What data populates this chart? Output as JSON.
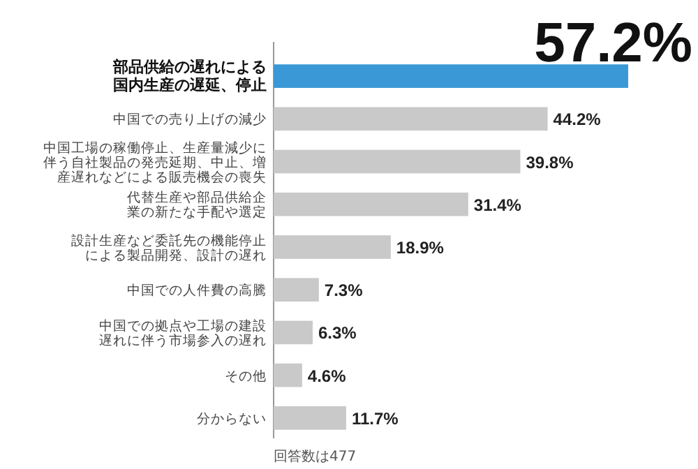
{
  "chart_data": {
    "type": "bar",
    "orientation": "horizontal",
    "categories": [
      "部品供給の遅れによる国内生産の遅延、停止",
      "中国での売り上げの減少",
      "中国工場の稼働停止、生産量減少に伴う自社製品の発売延期、中止、増産遅れなどによる販売機会の喪失",
      "代替生産や部品供給企業の新たな手配や選定",
      "設計生産など委託先の機能停止による製品開発、設計の遅れ",
      "中国での人件費の高騰",
      "中国での拠点や工場の建設遅れに伴う市場参入の遅れ",
      "その他",
      "分からない"
    ],
    "values": [
      57.2,
      44.2,
      39.8,
      31.4,
      18.9,
      7.3,
      6.3,
      4.6,
      11.7
    ],
    "value_labels": [
      "57.2%",
      "44.2%",
      "39.8%",
      "31.4%",
      "18.9%",
      "7.3%",
      "6.3%",
      "4.6%",
      "11.7%"
    ],
    "colors": [
      "#3b98d6",
      "#c9c9c9",
      "#c9c9c9",
      "#c9c9c9",
      "#c9c9c9",
      "#c9c9c9",
      "#c9c9c9",
      "#c9c9c9",
      "#c9c9c9"
    ],
    "annotations": [
      "回答数は477"
    ]
  }
}
